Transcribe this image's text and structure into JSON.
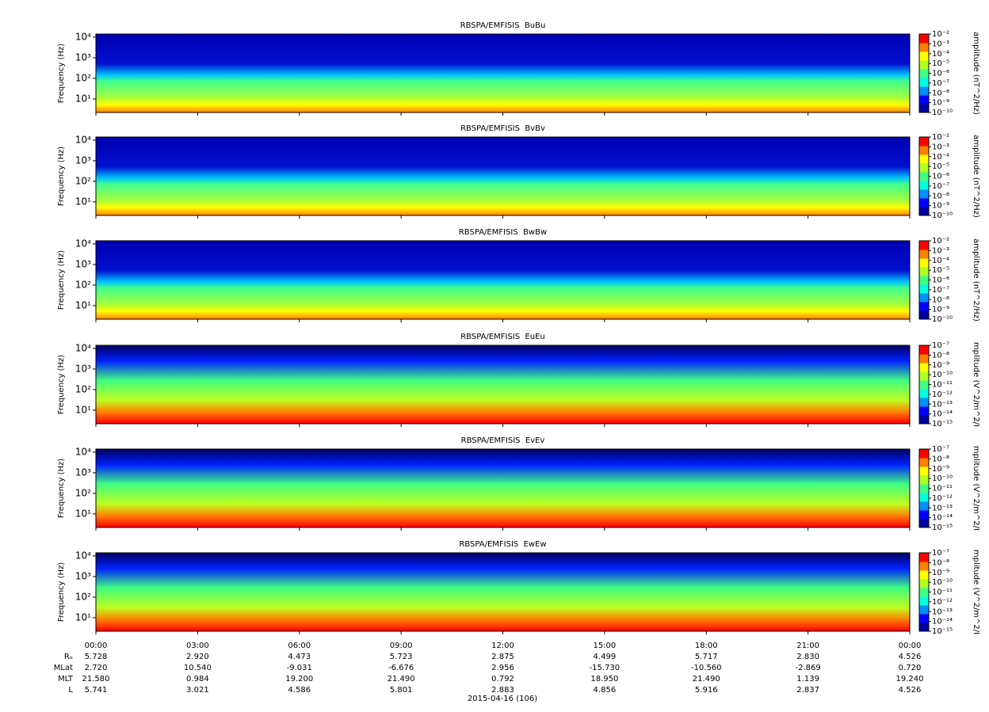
{
  "chart_data": [
    {
      "type": "spectrogram",
      "title": "RBSPA/EMFISIS  BuBu",
      "ylabel": "Frequency (Hz)",
      "ylog": true,
      "ylim": [
        2.2,
        14200
      ],
      "yticks": [
        {
          "value": 10,
          "label": "10¹"
        },
        {
          "value": 100,
          "label": "10²"
        },
        {
          "value": 1000,
          "label": "10³"
        },
        {
          "value": 10000,
          "label": "10⁴"
        }
      ],
      "zlabel": "amplitude (nT^2/Hz)",
      "zlim": [
        1e-10,
        0.01
      ],
      "zticks": [
        {
          "value": 0.01,
          "label": "10⁻²"
        },
        {
          "value": 0.001,
          "label": "10⁻³"
        },
        {
          "value": 0.0001,
          "label": "10⁻⁴"
        },
        {
          "value": 1e-05,
          "label": "10⁻⁵"
        },
        {
          "value": 1e-06,
          "label": "10⁻⁶"
        },
        {
          "value": 1e-07,
          "label": "10⁻⁷"
        },
        {
          "value": 1e-08,
          "label": "10⁻⁸"
        },
        {
          "value": 1e-09,
          "label": "10⁻⁹"
        },
        {
          "value": 1e-10,
          "label": "10⁻¹⁰"
        }
      ]
    },
    {
      "type": "spectrogram",
      "title": "RBSPA/EMFISIS  BvBv",
      "ylabel": "Frequency (Hz)",
      "ylog": true,
      "ylim": [
        2.2,
        14200
      ],
      "yticks": [
        {
          "value": 10,
          "label": "10¹"
        },
        {
          "value": 100,
          "label": "10²"
        },
        {
          "value": 1000,
          "label": "10³"
        },
        {
          "value": 10000,
          "label": "10⁴"
        }
      ],
      "zlabel": "amplitude (nT^2/Hz)",
      "zlim": [
        1e-10,
        0.01
      ],
      "zticks": [
        {
          "value": 0.01,
          "label": "10⁻²"
        },
        {
          "value": 0.001,
          "label": "10⁻³"
        },
        {
          "value": 0.0001,
          "label": "10⁻⁴"
        },
        {
          "value": 1e-05,
          "label": "10⁻⁵"
        },
        {
          "value": 1e-06,
          "label": "10⁻⁶"
        },
        {
          "value": 1e-07,
          "label": "10⁻⁷"
        },
        {
          "value": 1e-08,
          "label": "10⁻⁸"
        },
        {
          "value": 1e-09,
          "label": "10⁻⁹"
        },
        {
          "value": 1e-10,
          "label": "10⁻¹⁰"
        }
      ]
    },
    {
      "type": "spectrogram",
      "title": "RBSPA/EMFISIS  BwBw",
      "ylabel": "Frequency (Hz)",
      "ylog": true,
      "ylim": [
        2.2,
        14200
      ],
      "yticks": [
        {
          "value": 10,
          "label": "10¹"
        },
        {
          "value": 100,
          "label": "10²"
        },
        {
          "value": 1000,
          "label": "10³"
        },
        {
          "value": 10000,
          "label": "10⁴"
        }
      ],
      "zlabel": "amplitude (nT^2/Hz)",
      "zlim": [
        1e-10,
        0.01
      ],
      "zticks": [
        {
          "value": 0.01,
          "label": "10⁻²"
        },
        {
          "value": 0.001,
          "label": "10⁻³"
        },
        {
          "value": 0.0001,
          "label": "10⁻⁴"
        },
        {
          "value": 1e-05,
          "label": "10⁻⁵"
        },
        {
          "value": 1e-06,
          "label": "10⁻⁶"
        },
        {
          "value": 1e-07,
          "label": "10⁻⁷"
        },
        {
          "value": 1e-08,
          "label": "10⁻⁸"
        },
        {
          "value": 1e-09,
          "label": "10⁻⁹"
        },
        {
          "value": 1e-10,
          "label": "10⁻¹⁰"
        }
      ]
    },
    {
      "type": "spectrogram",
      "title": "RBSPA/EMFISIS  EuEu",
      "ylabel": "Frequency (Hz)",
      "ylog": true,
      "ylim": [
        2.2,
        14200
      ],
      "yticks": [
        {
          "value": 10,
          "label": "10¹"
        },
        {
          "value": 100,
          "label": "10²"
        },
        {
          "value": 1000,
          "label": "10³"
        },
        {
          "value": 10000,
          "label": "10⁴"
        }
      ],
      "zlabel": "mplitude (V^2/m^2/I",
      "zlim": [
        1e-15,
        1e-07
      ],
      "zticks": [
        {
          "value": 1e-07,
          "label": "10⁻⁷"
        },
        {
          "value": 1e-08,
          "label": "10⁻⁸"
        },
        {
          "value": 1e-09,
          "label": "10⁻⁹"
        },
        {
          "value": 1e-10,
          "label": "10⁻¹⁰"
        },
        {
          "value": 1e-11,
          "label": "10⁻¹¹"
        },
        {
          "value": 1e-12,
          "label": "10⁻¹²"
        },
        {
          "value": 1e-13,
          "label": "10⁻¹³"
        },
        {
          "value": 1e-14,
          "label": "10⁻¹⁴"
        },
        {
          "value": 1e-15,
          "label": "10⁻¹⁵"
        }
      ]
    },
    {
      "type": "spectrogram",
      "title": "RBSPA/EMFISIS  EvEv",
      "ylabel": "Frequency (Hz)",
      "ylog": true,
      "ylim": [
        2.2,
        14200
      ],
      "yticks": [
        {
          "value": 10,
          "label": "10¹"
        },
        {
          "value": 100,
          "label": "10²"
        },
        {
          "value": 1000,
          "label": "10³"
        },
        {
          "value": 10000,
          "label": "10⁴"
        }
      ],
      "zlabel": "mplitude (V^2/m^2/I",
      "zlim": [
        1e-15,
        1e-07
      ],
      "zticks": [
        {
          "value": 1e-07,
          "label": "10⁻⁷"
        },
        {
          "value": 1e-08,
          "label": "10⁻⁸"
        },
        {
          "value": 1e-09,
          "label": "10⁻⁹"
        },
        {
          "value": 1e-10,
          "label": "10⁻¹⁰"
        },
        {
          "value": 1e-11,
          "label": "10⁻¹¹"
        },
        {
          "value": 1e-12,
          "label": "10⁻¹²"
        },
        {
          "value": 1e-13,
          "label": "10⁻¹³"
        },
        {
          "value": 1e-14,
          "label": "10⁻¹⁴"
        },
        {
          "value": 1e-15,
          "label": "10⁻¹⁵"
        }
      ]
    },
    {
      "type": "spectrogram",
      "title": "RBSPA/EMFISIS  EwEw",
      "ylabel": "Frequency (Hz)",
      "ylog": true,
      "ylim": [
        2.2,
        14200
      ],
      "yticks": [
        {
          "value": 10,
          "label": "10¹"
        },
        {
          "value": 100,
          "label": "10²"
        },
        {
          "value": 1000,
          "label": "10³"
        },
        {
          "value": 10000,
          "label": "10⁴"
        }
      ],
      "zlabel": "mplitude (V^2/m^2/I",
      "zlim": [
        1e-15,
        1e-07
      ],
      "zticks": [
        {
          "value": 1e-07,
          "label": "10⁻⁷"
        },
        {
          "value": 1e-08,
          "label": "10⁻⁸"
        },
        {
          "value": 1e-09,
          "label": "10⁻⁹"
        },
        {
          "value": 1e-10,
          "label": "10⁻¹⁰"
        },
        {
          "value": 1e-11,
          "label": "10⁻¹¹"
        },
        {
          "value": 1e-12,
          "label": "10⁻¹²"
        },
        {
          "value": 1e-13,
          "label": "10⁻¹³"
        },
        {
          "value": 1e-14,
          "label": "10⁻¹⁴"
        },
        {
          "value": 1e-15,
          "label": "10⁻¹⁵"
        }
      ]
    }
  ],
  "colormap": [
    "#0000a0",
    "#0000ff",
    "#0090ff",
    "#00ffe0",
    "#40ff80",
    "#b0ff20",
    "#ffff00",
    "#ff8000",
    "#ff0000"
  ],
  "time_axis": {
    "xlim": [
      0,
      24
    ],
    "xlabel": "2015-04-16 (106)",
    "xticks": [
      {
        "value": 0,
        "label": "00:00"
      },
      {
        "value": 3,
        "label": "03:00"
      },
      {
        "value": 6,
        "label": "06:00"
      },
      {
        "value": 9,
        "label": "09:00"
      },
      {
        "value": 12,
        "label": "12:00"
      },
      {
        "value": 15,
        "label": "15:00"
      },
      {
        "value": 18,
        "label": "18:00"
      },
      {
        "value": 21,
        "label": "21:00"
      },
      {
        "value": 24,
        "label": "00:00"
      }
    ]
  },
  "ephemeris": [
    {
      "label": "Rₑ",
      "values": [
        "5.728",
        "2.920",
        "4.473",
        "5.723",
        "2.875",
        "4.499",
        "5.717",
        "2.830",
        "4.526"
      ]
    },
    {
      "label": "MLat",
      "values": [
        "2.720",
        "10.540",
        "-9.031",
        "-6.676",
        "2.956",
        "-15.730",
        "-10.560",
        "-2.869",
        "0.720"
      ]
    },
    {
      "label": "MLT",
      "values": [
        "21.580",
        "0.984",
        "19.200",
        "21.490",
        "0.792",
        "18.950",
        "21.490",
        "1.139",
        "19.240"
      ]
    },
    {
      "label": "L",
      "values": [
        "5.741",
        "3.021",
        "4.586",
        "5.801",
        "2.883",
        "4.856",
        "5.916",
        "2.837",
        "4.526"
      ]
    }
  ]
}
